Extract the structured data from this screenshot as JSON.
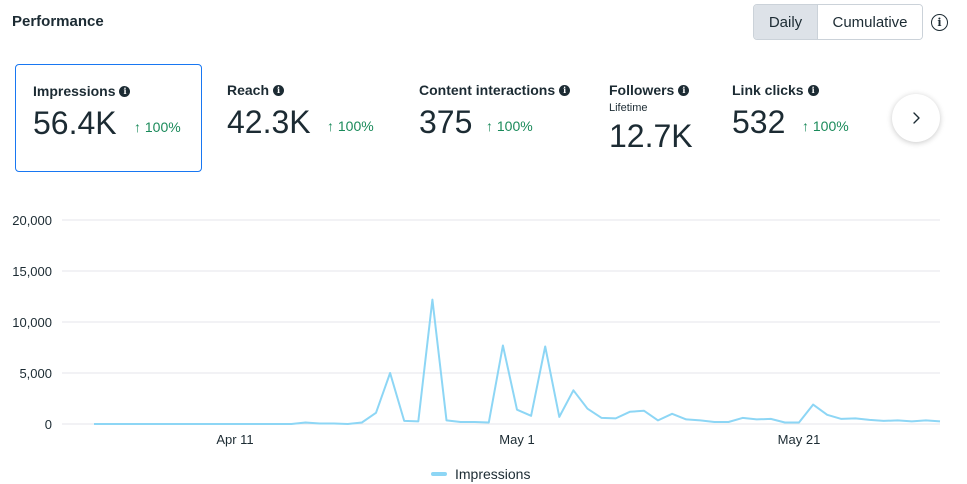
{
  "header": {
    "title": "Performance"
  },
  "toggle": {
    "daily": "Daily",
    "cumulative": "Cumulative"
  },
  "metrics": [
    {
      "label": "Impressions",
      "value": "56.4K",
      "change": "100%"
    },
    {
      "label": "Reach",
      "value": "42.3K",
      "change": "100%"
    },
    {
      "label": "Content interactions",
      "value": "375",
      "change": "100%"
    },
    {
      "label": "Followers",
      "sublabel": "Lifetime",
      "value": "12.7K"
    },
    {
      "label": "Link clicks",
      "value": "532",
      "change": "100%"
    }
  ],
  "colors": {
    "accent": "#1877f2",
    "positive": "#1a8a5a",
    "series": "#8dd6f5",
    "grid": "#e4e6eb"
  },
  "chart_data": {
    "type": "line",
    "title": "",
    "xlabel": "",
    "ylabel": "",
    "ylim": [
      0,
      20000
    ],
    "yticks": [
      0,
      5000,
      10000,
      15000,
      20000
    ],
    "ytick_labels": [
      "0",
      "5,000",
      "10,000",
      "15,000",
      "20,000"
    ],
    "xtick_labels": [
      {
        "label": "Apr 11",
        "index": 10
      },
      {
        "label": "May 1",
        "index": 30
      },
      {
        "label": "May 21",
        "index": 50
      }
    ],
    "legend": "bottom-center",
    "series": [
      {
        "name": "Impressions",
        "values": [
          0,
          0,
          0,
          0,
          0,
          0,
          0,
          0,
          0,
          0,
          0,
          0,
          0,
          0,
          0,
          150,
          50,
          50,
          0,
          150,
          1100,
          5000,
          300,
          250,
          12200,
          350,
          200,
          200,
          150,
          7700,
          1400,
          800,
          7600,
          700,
          3300,
          1500,
          600,
          550,
          1200,
          1300,
          350,
          1000,
          450,
          350,
          200,
          200,
          600,
          450,
          500,
          150,
          150,
          1900,
          900,
          500,
          550,
          400,
          300,
          350,
          250,
          350,
          250
        ]
      }
    ]
  }
}
